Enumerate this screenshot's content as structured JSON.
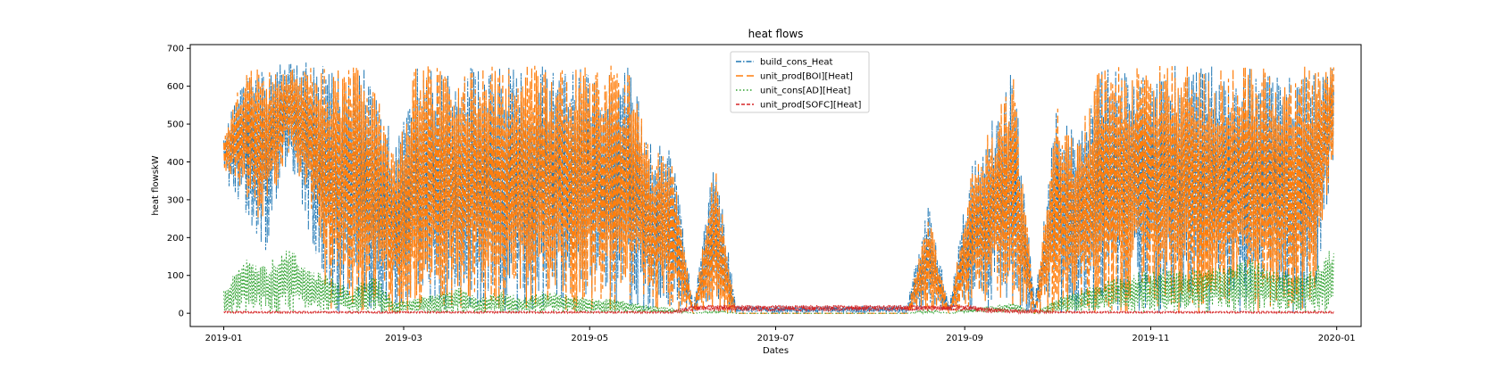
{
  "chart_data": {
    "type": "line",
    "title": "heat flows",
    "xlabel": "Dates",
    "ylabel": "heat flowskW",
    "x_range": [
      "2018-12-21",
      "2020-01-09"
    ],
    "ylim": [
      -35,
      710
    ],
    "x_ticks": [
      {
        "date": "2019-01-01",
        "label": "2019-01"
      },
      {
        "date": "2019-03-01",
        "label": "2019-03"
      },
      {
        "date": "2019-05-01",
        "label": "2019-05"
      },
      {
        "date": "2019-07-01",
        "label": "2019-07"
      },
      {
        "date": "2019-09-01",
        "label": "2019-09"
      },
      {
        "date": "2019-11-01",
        "label": "2019-11"
      },
      {
        "date": "2020-01-01",
        "label": "2020-01"
      }
    ],
    "y_ticks": [
      {
        "value": 0,
        "label": "0"
      },
      {
        "value": 100,
        "label": "100"
      },
      {
        "value": 200,
        "label": "200"
      },
      {
        "value": 300,
        "label": "300"
      },
      {
        "value": 400,
        "label": "400"
      },
      {
        "value": 500,
        "label": "500"
      },
      {
        "value": 600,
        "label": "600"
      },
      {
        "value": 700,
        "label": "700"
      }
    ],
    "grid": false,
    "legend_position": "top-center",
    "x_start": "2019-01-01",
    "x_end": "2019-12-31",
    "series": [
      {
        "name": "build_cons_Heat",
        "color": "#1f77b4",
        "dash": "dash-dot",
        "x": [
          "2019-01-01",
          "2019-01-08",
          "2019-01-15",
          "2019-01-22",
          "2019-01-29",
          "2019-02-05",
          "2019-02-12",
          "2019-02-19",
          "2019-02-26",
          "2019-03-05",
          "2019-03-12",
          "2019-03-19",
          "2019-03-26",
          "2019-04-02",
          "2019-04-09",
          "2019-04-16",
          "2019-04-23",
          "2019-04-30",
          "2019-05-07",
          "2019-05-14",
          "2019-05-21",
          "2019-05-28",
          "2019-06-04",
          "2019-06-11",
          "2019-06-18",
          "2019-06-25",
          "2019-07-02",
          "2019-07-09",
          "2019-07-16",
          "2019-07-23",
          "2019-07-30",
          "2019-08-06",
          "2019-08-13",
          "2019-08-20",
          "2019-08-27",
          "2019-09-03",
          "2019-09-10",
          "2019-09-17",
          "2019-09-24",
          "2019-10-01",
          "2019-10-08",
          "2019-10-15",
          "2019-10-22",
          "2019-10-29",
          "2019-11-05",
          "2019-11-12",
          "2019-11-19",
          "2019-11-26",
          "2019-12-03",
          "2019-12-10",
          "2019-12-17",
          "2019-12-24",
          "2019-12-31"
        ],
        "max": [
          480,
          655,
          640,
          680,
          660,
          655,
          650,
          655,
          440,
          650,
          655,
          655,
          655,
          655,
          655,
          655,
          645,
          655,
          655,
          650,
          450,
          440,
          20,
          420,
          20,
          20,
          20,
          20,
          20,
          20,
          20,
          20,
          20,
          290,
          20,
          400,
          520,
          650,
          30,
          560,
          460,
          650,
          650,
          640,
          655,
          655,
          655,
          655,
          655,
          655,
          650,
          650,
          655
        ],
        "min": [
          350,
          250,
          150,
          400,
          200,
          0,
          0,
          0,
          0,
          0,
          0,
          0,
          0,
          0,
          0,
          0,
          0,
          0,
          0,
          0,
          0,
          0,
          0,
          0,
          0,
          0,
          0,
          0,
          0,
          0,
          0,
          0,
          0,
          0,
          0,
          0,
          0,
          0,
          0,
          0,
          0,
          0,
          0,
          0,
          0,
          0,
          0,
          0,
          0,
          0,
          0,
          0,
          400
        ]
      },
      {
        "name": "unit_prod[BOI][Heat]",
        "color": "#ff7f0e",
        "dash": "long-dash",
        "x": [
          "2019-01-01",
          "2019-01-08",
          "2019-01-15",
          "2019-01-22",
          "2019-01-29",
          "2019-02-05",
          "2019-02-12",
          "2019-02-19",
          "2019-02-26",
          "2019-03-05",
          "2019-03-12",
          "2019-03-19",
          "2019-03-26",
          "2019-04-02",
          "2019-04-09",
          "2019-04-16",
          "2019-04-23",
          "2019-04-30",
          "2019-05-07",
          "2019-05-14",
          "2019-05-21",
          "2019-05-28",
          "2019-06-04",
          "2019-06-11",
          "2019-06-18",
          "2019-06-25",
          "2019-07-02",
          "2019-07-09",
          "2019-07-16",
          "2019-07-23",
          "2019-07-30",
          "2019-08-06",
          "2019-08-13",
          "2019-08-20",
          "2019-08-27",
          "2019-09-03",
          "2019-09-10",
          "2019-09-17",
          "2019-09-24",
          "2019-10-01",
          "2019-10-08",
          "2019-10-15",
          "2019-10-22",
          "2019-10-29",
          "2019-11-05",
          "2019-11-12",
          "2019-11-19",
          "2019-11-26",
          "2019-12-03",
          "2019-12-10",
          "2019-12-17",
          "2019-12-24",
          "2019-12-31"
        ],
        "max": [
          460,
          655,
          655,
          655,
          655,
          655,
          655,
          655,
          420,
          655,
          655,
          655,
          655,
          655,
          655,
          655,
          655,
          655,
          655,
          655,
          420,
          430,
          0,
          410,
          0,
          0,
          0,
          0,
          0,
          0,
          0,
          0,
          0,
          280,
          0,
          380,
          500,
          655,
          0,
          550,
          450,
          655,
          655,
          655,
          655,
          655,
          655,
          655,
          655,
          655,
          655,
          655,
          655
        ],
        "min": [
          380,
          300,
          200,
          430,
          260,
          0,
          0,
          0,
          0,
          0,
          0,
          0,
          0,
          0,
          0,
          0,
          0,
          0,
          0,
          0,
          0,
          0,
          0,
          0,
          0,
          0,
          0,
          0,
          0,
          0,
          0,
          0,
          0,
          0,
          0,
          0,
          0,
          0,
          0,
          0,
          0,
          0,
          0,
          0,
          0,
          0,
          0,
          0,
          0,
          0,
          0,
          0,
          420
        ]
      },
      {
        "name": "unit_cons[AD][Heat]",
        "color": "#2ca02c",
        "dash": "dotted",
        "x": [
          "2019-01-01",
          "2019-01-08",
          "2019-01-15",
          "2019-01-22",
          "2019-01-29",
          "2019-02-05",
          "2019-02-12",
          "2019-02-19",
          "2019-02-26",
          "2019-03-05",
          "2019-03-12",
          "2019-03-19",
          "2019-03-26",
          "2019-04-02",
          "2019-04-09",
          "2019-04-16",
          "2019-04-23",
          "2019-04-30",
          "2019-05-07",
          "2019-05-14",
          "2019-05-21",
          "2019-05-28",
          "2019-06-04",
          "2019-06-11",
          "2019-06-18",
          "2019-06-25",
          "2019-07-02",
          "2019-07-09",
          "2019-07-16",
          "2019-07-23",
          "2019-07-30",
          "2019-08-06",
          "2019-08-13",
          "2019-08-20",
          "2019-08-27",
          "2019-09-03",
          "2019-09-10",
          "2019-09-17",
          "2019-09-24",
          "2019-10-01",
          "2019-10-08",
          "2019-10-15",
          "2019-10-22",
          "2019-10-29",
          "2019-11-05",
          "2019-11-12",
          "2019-11-19",
          "2019-11-26",
          "2019-12-03",
          "2019-12-10",
          "2019-12-17",
          "2019-12-24",
          "2019-12-31"
        ],
        "max": [
          60,
          150,
          130,
          180,
          120,
          100,
          60,
          110,
          30,
          40,
          50,
          70,
          40,
          60,
          40,
          60,
          50,
          40,
          40,
          30,
          20,
          15,
          0,
          10,
          0,
          0,
          0,
          0,
          0,
          0,
          0,
          0,
          0,
          10,
          0,
          15,
          20,
          30,
          0,
          40,
          60,
          80,
          100,
          110,
          120,
          110,
          120,
          130,
          150,
          120,
          110,
          120,
          180
        ],
        "min": [
          0,
          0,
          0,
          0,
          0,
          0,
          0,
          0,
          0,
          0,
          0,
          0,
          0,
          0,
          0,
          0,
          0,
          0,
          0,
          0,
          0,
          0,
          0,
          0,
          0,
          0,
          0,
          0,
          0,
          0,
          0,
          0,
          0,
          0,
          0,
          0,
          0,
          0,
          0,
          0,
          0,
          0,
          0,
          0,
          0,
          0,
          0,
          0,
          0,
          0,
          0,
          0,
          0
        ]
      },
      {
        "name": "unit_prod[SOFC][Heat]",
        "color": "#d62728",
        "dash": "dashed",
        "x": [
          "2019-01-01",
          "2019-01-08",
          "2019-01-15",
          "2019-01-22",
          "2019-01-29",
          "2019-02-05",
          "2019-02-12",
          "2019-02-19",
          "2019-02-26",
          "2019-03-05",
          "2019-03-12",
          "2019-03-19",
          "2019-03-26",
          "2019-04-02",
          "2019-04-09",
          "2019-04-16",
          "2019-04-23",
          "2019-04-30",
          "2019-05-07",
          "2019-05-14",
          "2019-05-21",
          "2019-05-28",
          "2019-06-04",
          "2019-06-11",
          "2019-06-18",
          "2019-06-25",
          "2019-07-02",
          "2019-07-09",
          "2019-07-16",
          "2019-07-23",
          "2019-07-30",
          "2019-08-06",
          "2019-08-13",
          "2019-08-20",
          "2019-08-27",
          "2019-09-03",
          "2019-09-10",
          "2019-09-17",
          "2019-09-24",
          "2019-10-01",
          "2019-10-08",
          "2019-10-15",
          "2019-10-22",
          "2019-10-29",
          "2019-11-05",
          "2019-11-12",
          "2019-11-19",
          "2019-11-26",
          "2019-12-03",
          "2019-12-10",
          "2019-12-17",
          "2019-12-24",
          "2019-12-31"
        ],
        "max": [
          5,
          5,
          5,
          5,
          5,
          5,
          5,
          5,
          5,
          5,
          5,
          5,
          5,
          5,
          5,
          5,
          5,
          5,
          5,
          5,
          5,
          5,
          22,
          22,
          22,
          22,
          22,
          22,
          22,
          22,
          22,
          22,
          22,
          22,
          22,
          22,
          15,
          10,
          10,
          5,
          5,
          5,
          5,
          5,
          5,
          5,
          5,
          5,
          5,
          5,
          5,
          5,
          5
        ],
        "min": [
          0,
          0,
          0,
          0,
          0,
          0,
          0,
          0,
          0,
          0,
          0,
          0,
          0,
          0,
          0,
          0,
          0,
          0,
          0,
          0,
          0,
          0,
          5,
          5,
          5,
          5,
          5,
          5,
          5,
          5,
          5,
          5,
          5,
          5,
          5,
          5,
          0,
          0,
          0,
          0,
          0,
          0,
          0,
          0,
          0,
          0,
          0,
          0,
          0,
          0,
          0,
          0,
          0
        ]
      }
    ]
  }
}
